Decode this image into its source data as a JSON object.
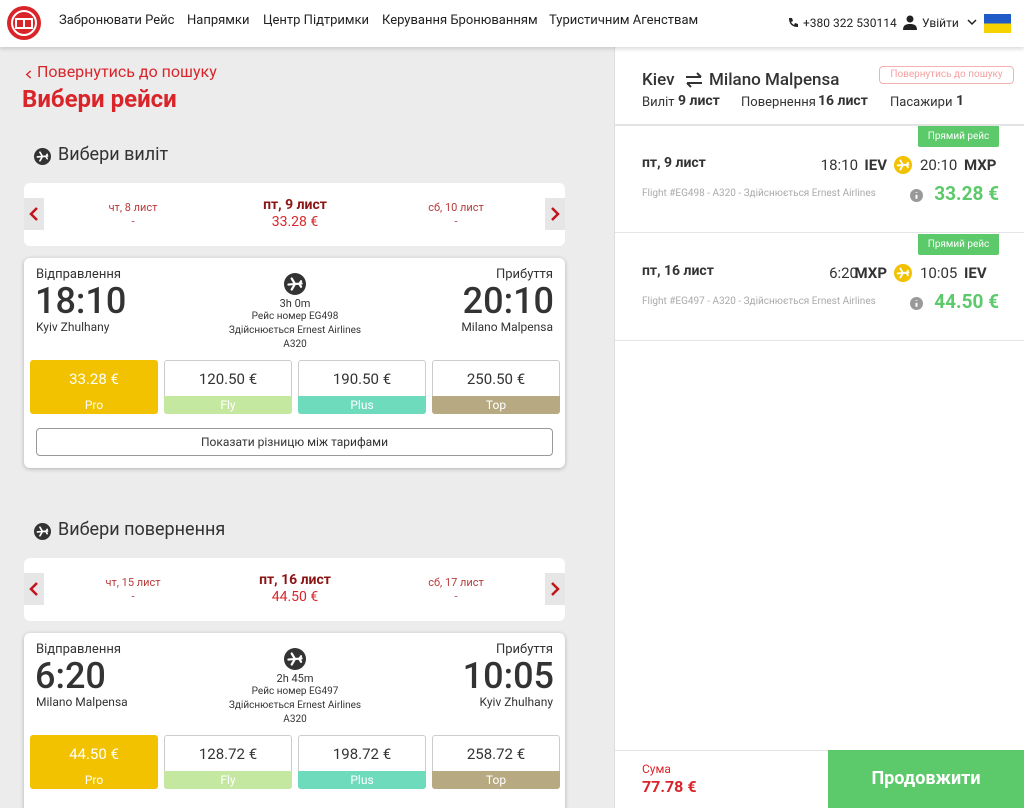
{
  "header": {
    "nav": [
      "Забронювати Рейс",
      "Напрямки",
      "Центр Підтримки",
      "Керування Бронюванням",
      "Туристичним Агенствам"
    ],
    "phone": "+380 322 530114",
    "login": "Увійти"
  },
  "search": {
    "back": "Повернутись до пошуку",
    "title": "Вибери рейси"
  },
  "legs": [
    {
      "heading": "Вибери виліт",
      "prev_day": {
        "date": "чт, 8 лист",
        "price": "-"
      },
      "day": {
        "date": "пт, 9 лист",
        "price": "33.28 €"
      },
      "next_day": {
        "date": "сб, 10 лист",
        "price": "-"
      },
      "flight": {
        "departure_label": "Відправлення",
        "departure_time": "18:10",
        "departure_city": "Kyiv Zhulhany",
        "duration": "3h 0m",
        "flight_number": "Рейс номер EG498",
        "operator": "Здійснюється Ernest Airlines",
        "aircraft": "A320",
        "arrival_label": "Прибуття",
        "arrival_time": "20:10",
        "arrival_city": "Milano Malpensa"
      },
      "fares": [
        {
          "price": "33.28 €",
          "name": "Pro"
        },
        {
          "price": "120.50 €",
          "name": "Fly"
        },
        {
          "price": "190.50 €",
          "name": "Plus"
        },
        {
          "price": "250.50 €",
          "name": "Top"
        }
      ],
      "compare": "Показати різницю між тарифами"
    },
    {
      "heading": "Вибери повернення",
      "prev_day": {
        "date": "чт, 15 лист",
        "price": "-"
      },
      "day": {
        "date": "пт, 16 лист",
        "price": "44.50 €"
      },
      "next_day": {
        "date": "сб, 17 лист",
        "price": "-"
      },
      "flight": {
        "departure_label": "Відправлення",
        "departure_time": "6:20",
        "departure_city": "Milano Malpensa",
        "duration": "2h 45m",
        "flight_number": "Рейс номер EG497",
        "operator": "Здійснюється Ernest Airlines",
        "aircraft": "A320",
        "arrival_label": "Прибуття",
        "arrival_time": "10:05",
        "arrival_city": "Kyiv Zhulhany"
      },
      "fares": [
        {
          "price": "44.50 €",
          "name": "Pro"
        },
        {
          "price": "128.72 €",
          "name": "Fly"
        },
        {
          "price": "198.72 €",
          "name": "Plus"
        },
        {
          "price": "258.72 €",
          "name": "Top"
        }
      ]
    }
  ],
  "summary": {
    "from": "Kiev",
    "to": "Milano Malpensa",
    "back": "Повернутись до пошуку",
    "departure_label": "Виліт",
    "departure_date": "9 лист",
    "return_label": "Повернення",
    "return_date": "16 лист",
    "passengers_label": "Пасажири",
    "passengers": "1",
    "flights": [
      {
        "badge": "Прямий рейс",
        "date": "пт, 9 лист",
        "departure_time": "18:10",
        "departure_code": "IEV",
        "arrival_time": "20:10",
        "arrival_code": "MXP",
        "info": "Flight #EG498 - A320 - Здійснюється Ernest Airlines",
        "price": "33.28 €"
      },
      {
        "badge": "Прямий рейс",
        "date": "пт, 16 лист",
        "departure_time": "6:20",
        "departure_code": "MXP",
        "arrival_time": "10:05",
        "arrival_code": "IEV",
        "info": "Flight #EG497 - A320 - Здійснюється Ernest Airlines",
        "price": "44.50 €"
      }
    ],
    "total_label": "Сума",
    "total": "77.78 €",
    "continue": "Продовжити"
  }
}
